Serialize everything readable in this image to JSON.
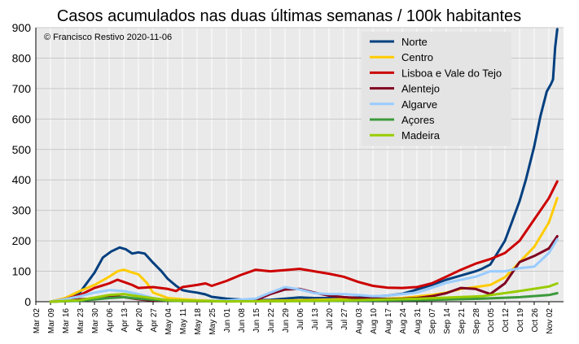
{
  "chart_data": {
    "type": "line",
    "title": "Casos acumulados nas duas últimas semanas / 100k habitantes",
    "annotation": "© Francisco Restivo 2020-11-06",
    "xlabel": "",
    "ylabel": "",
    "ylim": [
      0,
      900
    ],
    "yticks": [
      0,
      100,
      200,
      300,
      400,
      500,
      600,
      700,
      800,
      900
    ],
    "xrange": [
      "2020-03-02",
      "2020-11-09"
    ],
    "xticks": [
      "Mar 02",
      "Mar 09",
      "Mar 16",
      "Mar 23",
      "Mar 30",
      "Apr 06",
      "Apr 13",
      "Apr 20",
      "Apr 27",
      "May 04",
      "May 11",
      "May 18",
      "May 25",
      "Jun 01",
      "Jun 08",
      "Jun 15",
      "Jun 22",
      "Jun 29",
      "Jul 06",
      "Jul 13",
      "Jul 20",
      "Jul 27",
      "Aug 03",
      "Aug 10",
      "Aug 17",
      "Aug 24",
      "Aug 31",
      "Sep 07",
      "Sep 14",
      "Sep 21",
      "Sep 28",
      "Oct 05",
      "Oct 12",
      "Oct 19",
      "Oct 26",
      "Nov 02"
    ],
    "grid": true,
    "legend_position": "top-right",
    "series": [
      {
        "name": "Norte",
        "color": "#003f7f",
        "points": [
          [
            "2020-03-09",
            0
          ],
          [
            "2020-03-16",
            5
          ],
          [
            "2020-03-23",
            30
          ],
          [
            "2020-03-30",
            95
          ],
          [
            "2020-04-03",
            145
          ],
          [
            "2020-04-07",
            165
          ],
          [
            "2020-04-11",
            178
          ],
          [
            "2020-04-14",
            172
          ],
          [
            "2020-04-17",
            158
          ],
          [
            "2020-04-20",
            162
          ],
          [
            "2020-04-23",
            158
          ],
          [
            "2020-04-27",
            128
          ],
          [
            "2020-05-01",
            100
          ],
          [
            "2020-05-04",
            75
          ],
          [
            "2020-05-08",
            52
          ],
          [
            "2020-05-11",
            38
          ],
          [
            "2020-05-14",
            34
          ],
          [
            "2020-05-18",
            30
          ],
          [
            "2020-05-22",
            24
          ],
          [
            "2020-05-25",
            16
          ],
          [
            "2020-06-01",
            10
          ],
          [
            "2020-06-08",
            7
          ],
          [
            "2020-06-15",
            5
          ],
          [
            "2020-06-22",
            6
          ],
          [
            "2020-06-29",
            10
          ],
          [
            "2020-07-06",
            14
          ],
          [
            "2020-07-13",
            12
          ],
          [
            "2020-07-20",
            12
          ],
          [
            "2020-07-27",
            13
          ],
          [
            "2020-08-03",
            14
          ],
          [
            "2020-08-10",
            17
          ],
          [
            "2020-08-17",
            20
          ],
          [
            "2020-08-24",
            26
          ],
          [
            "2020-08-31",
            40
          ],
          [
            "2020-09-07",
            55
          ],
          [
            "2020-09-14",
            72
          ],
          [
            "2020-09-21",
            86
          ],
          [
            "2020-09-28",
            100
          ],
          [
            "2020-10-01",
            108
          ],
          [
            "2020-10-05",
            122
          ],
          [
            "2020-10-08",
            155
          ],
          [
            "2020-10-12",
            200
          ],
          [
            "2020-10-15",
            255
          ],
          [
            "2020-10-19",
            330
          ],
          [
            "2020-10-22",
            400
          ],
          [
            "2020-10-26",
            510
          ],
          [
            "2020-10-29",
            610
          ],
          [
            "2020-11-01",
            690
          ],
          [
            "2020-11-03",
            715
          ],
          [
            "2020-11-04",
            730
          ],
          [
            "2020-11-05",
            835
          ],
          [
            "2020-11-06",
            895
          ]
        ]
      },
      {
        "name": "Centro",
        "color": "#ffcc00",
        "points": [
          [
            "2020-03-09",
            0
          ],
          [
            "2020-03-16",
            12
          ],
          [
            "2020-03-23",
            35
          ],
          [
            "2020-03-30",
            55
          ],
          [
            "2020-04-06",
            82
          ],
          [
            "2020-04-10",
            100
          ],
          [
            "2020-04-13",
            105
          ],
          [
            "2020-04-17",
            96
          ],
          [
            "2020-04-20",
            90
          ],
          [
            "2020-04-24",
            62
          ],
          [
            "2020-04-27",
            30
          ],
          [
            "2020-05-01",
            20
          ],
          [
            "2020-05-04",
            12
          ],
          [
            "2020-05-11",
            8
          ],
          [
            "2020-05-18",
            5
          ],
          [
            "2020-05-25",
            4
          ],
          [
            "2020-06-01",
            3
          ],
          [
            "2020-06-15",
            3
          ],
          [
            "2020-06-29",
            4
          ],
          [
            "2020-07-13",
            6
          ],
          [
            "2020-07-27",
            8
          ],
          [
            "2020-08-10",
            8
          ],
          [
            "2020-08-24",
            12
          ],
          [
            "2020-09-07",
            22
          ],
          [
            "2020-09-14",
            30
          ],
          [
            "2020-09-21",
            42
          ],
          [
            "2020-09-28",
            48
          ],
          [
            "2020-10-05",
            55
          ],
          [
            "2020-10-12",
            80
          ],
          [
            "2020-10-19",
            130
          ],
          [
            "2020-10-26",
            180
          ],
          [
            "2020-11-02",
            260
          ],
          [
            "2020-11-06",
            340
          ]
        ]
      },
      {
        "name": "Lisboa e Vale do Tejo",
        "color": "#cc0000",
        "points": [
          [
            "2020-03-09",
            0
          ],
          [
            "2020-03-16",
            8
          ],
          [
            "2020-03-23",
            22
          ],
          [
            "2020-03-30",
            45
          ],
          [
            "2020-04-06",
            60
          ],
          [
            "2020-04-10",
            72
          ],
          [
            "2020-04-13",
            65
          ],
          [
            "2020-04-17",
            55
          ],
          [
            "2020-04-20",
            45
          ],
          [
            "2020-04-27",
            48
          ],
          [
            "2020-05-04",
            42
          ],
          [
            "2020-05-08",
            35
          ],
          [
            "2020-05-11",
            48
          ],
          [
            "2020-05-18",
            55
          ],
          [
            "2020-05-22",
            60
          ],
          [
            "2020-05-25",
            52
          ],
          [
            "2020-06-01",
            68
          ],
          [
            "2020-06-08",
            88
          ],
          [
            "2020-06-15",
            105
          ],
          [
            "2020-06-22",
            100
          ],
          [
            "2020-06-29",
            104
          ],
          [
            "2020-07-06",
            108
          ],
          [
            "2020-07-13",
            100
          ],
          [
            "2020-07-20",
            92
          ],
          [
            "2020-07-27",
            82
          ],
          [
            "2020-08-03",
            65
          ],
          [
            "2020-08-10",
            52
          ],
          [
            "2020-08-17",
            46
          ],
          [
            "2020-08-24",
            45
          ],
          [
            "2020-08-31",
            48
          ],
          [
            "2020-09-07",
            60
          ],
          [
            "2020-09-14",
            82
          ],
          [
            "2020-09-21",
            105
          ],
          [
            "2020-09-28",
            125
          ],
          [
            "2020-10-05",
            140
          ],
          [
            "2020-10-12",
            160
          ],
          [
            "2020-10-19",
            200
          ],
          [
            "2020-10-26",
            270
          ],
          [
            "2020-11-02",
            340
          ],
          [
            "2020-11-06",
            395
          ]
        ]
      },
      {
        "name": "Alentejo",
        "color": "#800020",
        "points": [
          [
            "2020-03-09",
            0
          ],
          [
            "2020-03-16",
            2
          ],
          [
            "2020-03-23",
            8
          ],
          [
            "2020-03-30",
            10
          ],
          [
            "2020-04-06",
            18
          ],
          [
            "2020-04-13",
            15
          ],
          [
            "2020-04-20",
            8
          ],
          [
            "2020-04-27",
            4
          ],
          [
            "2020-05-04",
            3
          ],
          [
            "2020-05-18",
            2
          ],
          [
            "2020-06-01",
            2
          ],
          [
            "2020-06-15",
            5
          ],
          [
            "2020-06-22",
            25
          ],
          [
            "2020-06-29",
            40
          ],
          [
            "2020-07-06",
            42
          ],
          [
            "2020-07-13",
            30
          ],
          [
            "2020-07-20",
            20
          ],
          [
            "2020-07-27",
            15
          ],
          [
            "2020-08-03",
            12
          ],
          [
            "2020-08-10",
            10
          ],
          [
            "2020-08-17",
            9
          ],
          [
            "2020-08-24",
            10
          ],
          [
            "2020-08-31",
            12
          ],
          [
            "2020-09-07",
            18
          ],
          [
            "2020-09-14",
            28
          ],
          [
            "2020-09-21",
            45
          ],
          [
            "2020-09-28",
            42
          ],
          [
            "2020-10-05",
            25
          ],
          [
            "2020-10-12",
            60
          ],
          [
            "2020-10-19",
            130
          ],
          [
            "2020-10-26",
            150
          ],
          [
            "2020-11-02",
            175
          ],
          [
            "2020-11-06",
            215
          ]
        ]
      },
      {
        "name": "Algarve",
        "color": "#99ccff",
        "points": [
          [
            "2020-03-09",
            0
          ],
          [
            "2020-03-16",
            8
          ],
          [
            "2020-03-23",
            18
          ],
          [
            "2020-03-30",
            30
          ],
          [
            "2020-04-06",
            38
          ],
          [
            "2020-04-13",
            35
          ],
          [
            "2020-04-20",
            25
          ],
          [
            "2020-04-27",
            12
          ],
          [
            "2020-05-04",
            5
          ],
          [
            "2020-05-18",
            3
          ],
          [
            "2020-06-01",
            4
          ],
          [
            "2020-06-15",
            10
          ],
          [
            "2020-06-22",
            30
          ],
          [
            "2020-06-29",
            48
          ],
          [
            "2020-07-06",
            40
          ],
          [
            "2020-07-13",
            28
          ],
          [
            "2020-07-20",
            25
          ],
          [
            "2020-07-27",
            25
          ],
          [
            "2020-08-03",
            22
          ],
          [
            "2020-08-10",
            18
          ],
          [
            "2020-08-17",
            20
          ],
          [
            "2020-08-24",
            25
          ],
          [
            "2020-08-31",
            30
          ],
          [
            "2020-09-07",
            45
          ],
          [
            "2020-09-14",
            62
          ],
          [
            "2020-09-21",
            72
          ],
          [
            "2020-09-28",
            82
          ],
          [
            "2020-10-05",
            100
          ],
          [
            "2020-10-12",
            100
          ],
          [
            "2020-10-19",
            110
          ],
          [
            "2020-10-26",
            115
          ],
          [
            "2020-11-02",
            160
          ],
          [
            "2020-11-06",
            205
          ]
        ]
      },
      {
        "name": "Açores",
        "color": "#3c9a3c",
        "points": [
          [
            "2020-03-09",
            0
          ],
          [
            "2020-03-23",
            3
          ],
          [
            "2020-04-06",
            12
          ],
          [
            "2020-04-13",
            15
          ],
          [
            "2020-04-20",
            10
          ],
          [
            "2020-05-04",
            3
          ],
          [
            "2020-06-01",
            1
          ],
          [
            "2020-07-01",
            2
          ],
          [
            "2020-08-01",
            3
          ],
          [
            "2020-09-01",
            5
          ],
          [
            "2020-10-01",
            10
          ],
          [
            "2020-10-19",
            15
          ],
          [
            "2020-11-02",
            22
          ],
          [
            "2020-11-06",
            28
          ]
        ]
      },
      {
        "name": "Madeira",
        "color": "#99cc00",
        "points": [
          [
            "2020-03-09",
            0
          ],
          [
            "2020-03-23",
            5
          ],
          [
            "2020-04-06",
            22
          ],
          [
            "2020-04-13",
            25
          ],
          [
            "2020-04-20",
            18
          ],
          [
            "2020-05-04",
            5
          ],
          [
            "2020-06-01",
            1
          ],
          [
            "2020-07-01",
            2
          ],
          [
            "2020-08-01",
            5
          ],
          [
            "2020-09-01",
            10
          ],
          [
            "2020-10-01",
            18
          ],
          [
            "2020-10-19",
            35
          ],
          [
            "2020-11-02",
            50
          ],
          [
            "2020-11-06",
            60
          ]
        ]
      }
    ]
  }
}
